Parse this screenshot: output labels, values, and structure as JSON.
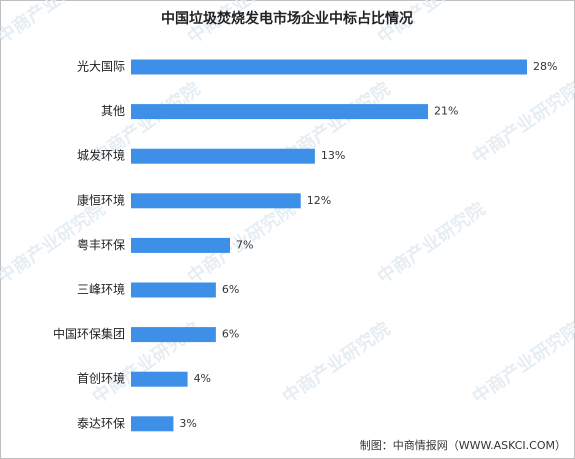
{
  "chart_data": {
    "type": "bar",
    "orientation": "horizontal",
    "title": "中国垃圾焚烧发电市场企业中标占比情况",
    "categories": [
      "光大国际",
      "其他",
      "城发环境",
      "康恒环境",
      "粤丰环保",
      "三峰环境",
      "中国环保集团",
      "首创环境",
      "泰达环保"
    ],
    "values": [
      28,
      21,
      13,
      12,
      7,
      6,
      6,
      4,
      3
    ],
    "value_labels": [
      "28%",
      "21%",
      "13%",
      "12%",
      "7%",
      "6%",
      "6%",
      "4%",
      "3%"
    ],
    "color": "#3d8fe8",
    "source": "制图：中商情报网（WWW.ASKCI.COM）",
    "watermark": "中商产业研究院"
  }
}
